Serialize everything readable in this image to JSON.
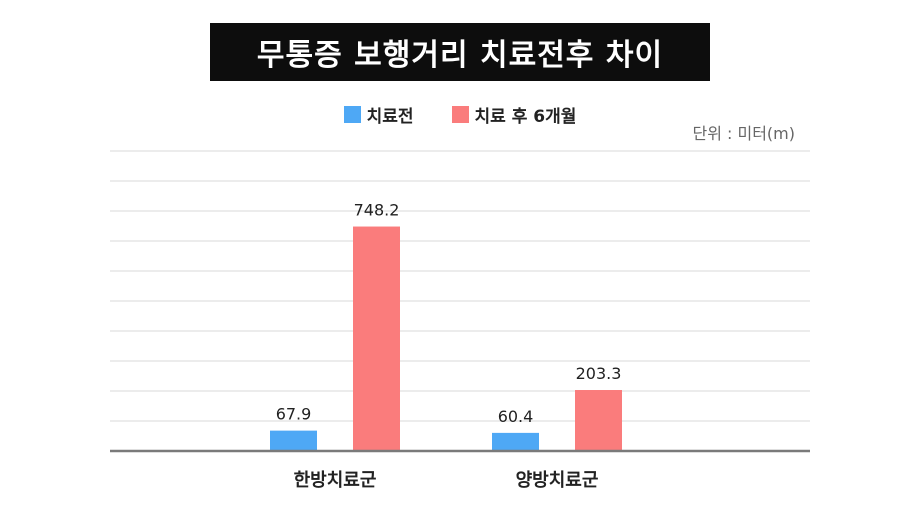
{
  "chart_data": {
    "type": "bar",
    "title": "무통증 보행거리 치료전후 차이",
    "unit_label": "단위 : 미터(m)",
    "categories": [
      "한방치료군",
      "양방치료군"
    ],
    "series": [
      {
        "name": "치료전",
        "color": "#4ea8f5",
        "values": [
          67.9,
          60.4
        ],
        "labels": [
          "67.9",
          "60.4"
        ]
      },
      {
        "name": "치료 후 6개월",
        "color": "#fa7c7c",
        "values": [
          748.2,
          203.3
        ],
        "labels": [
          "748.2",
          "203.3"
        ]
      }
    ],
    "ylim": [
      0,
      1000
    ],
    "grid": true,
    "legend_position": "top-center"
  }
}
